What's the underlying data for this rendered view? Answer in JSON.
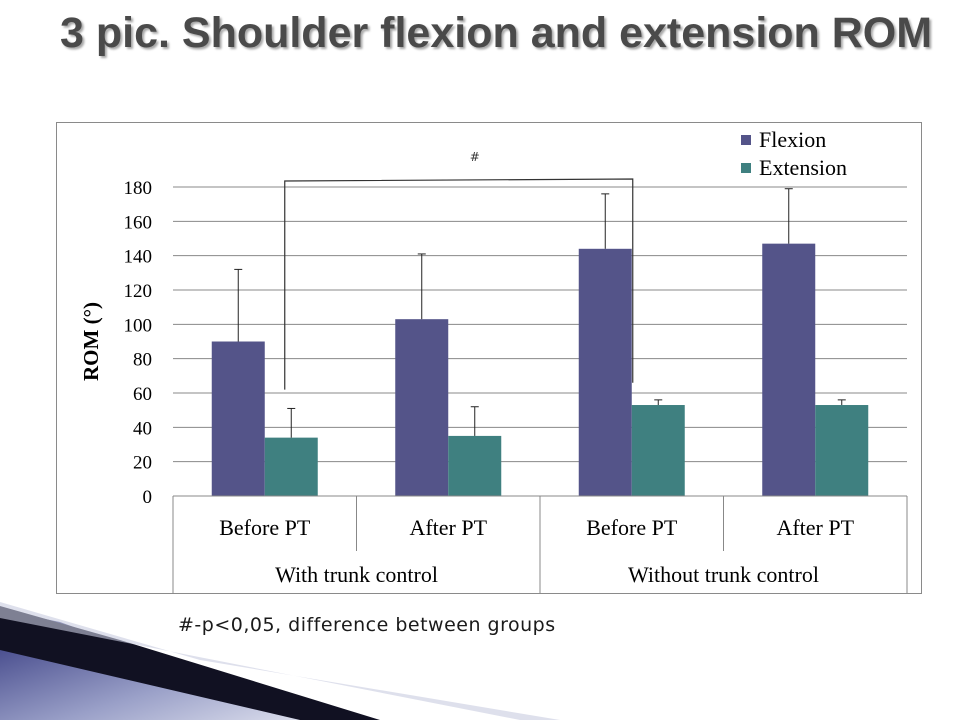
{
  "slide": {
    "title": "3 pic. Shoulder flexion and extension ROM",
    "footnote": "#-p<0,05, difference between groups"
  },
  "colors": {
    "flexion": "#545489",
    "extension": "#3f8080",
    "title": "#4a4a4a",
    "grid": "#888888"
  },
  "chart_data": {
    "type": "bar",
    "ylabel": "ROM (°)",
    "ylim": [
      0,
      180
    ],
    "yticks": [
      0,
      20,
      40,
      60,
      80,
      100,
      120,
      140,
      160,
      180
    ],
    "categories": [
      "Before PT",
      "After PT",
      "Before PT",
      "After PT"
    ],
    "groups": [
      {
        "label": "With trunk control",
        "categories": [
          0,
          1
        ]
      },
      {
        "label": "Without trunk control",
        "categories": [
          2,
          3
        ]
      }
    ],
    "series": [
      {
        "name": "Flexion",
        "values": [
          90,
          103,
          144,
          147
        ],
        "errors": [
          42,
          38,
          32,
          32
        ]
      },
      {
        "name": "Extension",
        "values": [
          34,
          35,
          53,
          53
        ],
        "errors": [
          17,
          17,
          3,
          3
        ]
      }
    ],
    "legend_position": "top-right",
    "grid": true,
    "annotation": {
      "text": "#",
      "from_category": 0,
      "from_series": 0,
      "to_category": 2,
      "to_series": 0
    }
  }
}
